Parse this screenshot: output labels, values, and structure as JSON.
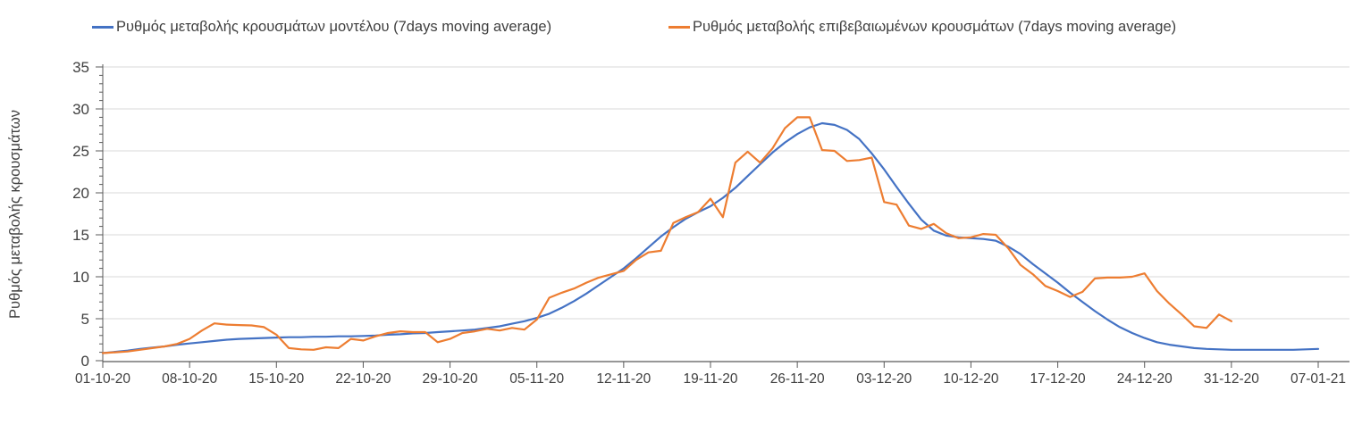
{
  "colors": {
    "model_series": "#4472C4",
    "confirmed_series": "#ED7D31",
    "gridline": "#D9D9D9",
    "axis": "#595959",
    "tick_text": "#404040"
  },
  "legend": [
    {
      "label": "Ρυθμός μεταβολής κρουσμάτων μοντέλου (7days moving average)",
      "color_key": "model_series"
    },
    {
      "label": "Ρυθμός μεταβολής επιβεβαιωμένων κρουσμάτων (7days moving average)",
      "color_key": "confirmed_series"
    }
  ],
  "chart_data": {
    "type": "line",
    "title": "",
    "xlabel": "",
    "ylabel": "Ρυθμός μεταβολής κρουσμάτων",
    "ylim": [
      0,
      35
    ],
    "y_ticks": [
      0,
      5,
      10,
      15,
      20,
      25,
      30,
      35
    ],
    "y_minor_tick_step": 1,
    "grid": "horizontal-only",
    "legend_position": "top",
    "x_unit": "days since 01-10-20 (daily points, 7-day moving average)",
    "x_tick_days": [
      0,
      7,
      14,
      21,
      28,
      35,
      42,
      49,
      56,
      63,
      70,
      77,
      84,
      91,
      98
    ],
    "x_tick_labels": [
      "01-10-20",
      "08-10-20",
      "15-10-20",
      "22-10-20",
      "29-10-20",
      "05-11-20",
      "12-11-20",
      "19-11-20",
      "26-11-20",
      "03-12-20",
      "10-12-20",
      "17-12-20",
      "24-12-20",
      "31-12-20",
      "07-01-21"
    ],
    "series": [
      {
        "id": "model",
        "name": "Ρυθμός μεταβολής κρουσμάτων μοντέλου (7days moving average)",
        "color": "#4472C4",
        "start_day": 0,
        "values": [
          0.9,
          1.05,
          1.2,
          1.4,
          1.55,
          1.7,
          1.9,
          2.05,
          2.2,
          2.35,
          2.5,
          2.6,
          2.65,
          2.7,
          2.75,
          2.8,
          2.8,
          2.85,
          2.85,
          2.9,
          2.9,
          2.95,
          3.0,
          3.1,
          3.15,
          3.25,
          3.3,
          3.4,
          3.5,
          3.6,
          3.7,
          3.9,
          4.1,
          4.4,
          4.7,
          5.1,
          5.6,
          6.3,
          7.1,
          8.0,
          9.0,
          10.0,
          11.0,
          12.2,
          13.5,
          14.8,
          15.9,
          16.9,
          17.7,
          18.4,
          19.4,
          20.6,
          22.0,
          23.4,
          24.8,
          26.0,
          27.0,
          27.8,
          28.3,
          28.1,
          27.5,
          26.4,
          24.7,
          22.8,
          20.7,
          18.7,
          16.8,
          15.5,
          14.9,
          14.7,
          14.6,
          14.5,
          14.3,
          13.6,
          12.7,
          11.5,
          10.4,
          9.3,
          8.1,
          7.0,
          5.9,
          4.9,
          4.0,
          3.3,
          2.7,
          2.2,
          1.9,
          1.7,
          1.5,
          1.4,
          1.35,
          1.3,
          1.3,
          1.3,
          1.3,
          1.3,
          1.3,
          1.35,
          1.4
        ]
      },
      {
        "id": "confirmed",
        "name": "Ρυθμός μεταβολής επιβεβαιωμένων κρουσμάτων (7days moving average)",
        "color": "#ED7D31",
        "start_day": 0,
        "values": [
          0.9,
          1.0,
          1.1,
          1.3,
          1.5,
          1.7,
          2.0,
          2.6,
          3.6,
          4.45,
          4.3,
          4.25,
          4.2,
          4.0,
          3.1,
          1.5,
          1.35,
          1.3,
          1.6,
          1.5,
          2.6,
          2.4,
          2.9,
          3.3,
          3.5,
          3.4,
          3.4,
          2.2,
          2.6,
          3.3,
          3.5,
          3.8,
          3.6,
          3.9,
          3.7,
          4.9,
          7.5,
          8.1,
          8.6,
          9.3,
          9.9,
          10.3,
          10.7,
          12.0,
          12.9,
          13.1,
          16.4,
          17.1,
          17.7,
          19.3,
          17.1,
          23.6,
          24.9,
          23.6,
          25.3,
          27.7,
          29.0,
          29.0,
          25.1,
          25.0,
          23.8,
          23.9,
          24.2,
          18.9,
          18.6,
          16.1,
          15.7,
          16.3,
          15.2,
          14.6,
          14.7,
          15.1,
          15.0,
          13.4,
          11.4,
          10.3,
          8.9,
          8.3,
          7.6,
          8.2,
          9.8,
          9.9,
          9.9,
          10.0,
          10.4,
          8.3,
          6.8,
          5.5,
          4.1,
          3.9,
          5.5,
          4.7
        ]
      }
    ]
  }
}
